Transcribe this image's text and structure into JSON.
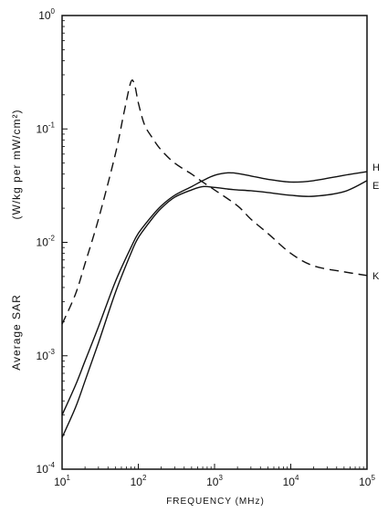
{
  "chart_data": {
    "type": "line",
    "x_scale": "log",
    "y_scale": "log",
    "xlim": [
      10,
      100000
    ],
    "ylim": [
      0.0001,
      1
    ],
    "grid": false,
    "xlabel": "FREQUENCY (MHz)",
    "ylabel": "Average SAR",
    "ylabel_units": "(W/kg per mW/cm²)",
    "x_ticks": [
      {
        "value": 10,
        "base": "10",
        "exp": "1"
      },
      {
        "value": 100,
        "base": "10",
        "exp": "2"
      },
      {
        "value": 1000,
        "base": "10",
        "exp": "3"
      },
      {
        "value": 10000,
        "base": "10",
        "exp": "4"
      },
      {
        "value": 100000,
        "base": "10",
        "exp": "5"
      }
    ],
    "y_ticks": [
      {
        "value": 1,
        "base": "10",
        "exp": "0"
      },
      {
        "value": 0.1,
        "base": "10",
        "exp": "-1"
      },
      {
        "value": 0.01,
        "base": "10",
        "exp": "-2"
      },
      {
        "value": 0.001,
        "base": "10",
        "exp": "-3"
      },
      {
        "value": 0.0001,
        "base": "10",
        "exp": "-4"
      }
    ],
    "series": [
      {
        "name": "H",
        "style": "solid",
        "x": [
          10,
          15,
          20,
          30,
          50,
          80,
          100,
          150,
          200,
          300,
          500,
          700,
          1000,
          1500,
          2000,
          3000,
          5000,
          10000,
          20000,
          50000,
          100000
        ],
        "y": [
          0.0003,
          0.00055,
          0.0009,
          0.0018,
          0.0045,
          0.009,
          0.012,
          0.017,
          0.021,
          0.026,
          0.031,
          0.035,
          0.039,
          0.041,
          0.0405,
          0.0385,
          0.036,
          0.034,
          0.035,
          0.039,
          0.042
        ]
      },
      {
        "name": "E",
        "style": "solid",
        "x": [
          10,
          15,
          20,
          30,
          50,
          80,
          100,
          150,
          200,
          300,
          500,
          700,
          1000,
          1500,
          2000,
          3000,
          5000,
          10000,
          20000,
          50000,
          100000
        ],
        "y": [
          0.00019,
          0.00035,
          0.0006,
          0.0013,
          0.0036,
          0.008,
          0.011,
          0.016,
          0.02,
          0.025,
          0.029,
          0.031,
          0.0305,
          0.0295,
          0.029,
          0.0285,
          0.0275,
          0.026,
          0.0255,
          0.028,
          0.035
        ]
      },
      {
        "name": "K",
        "style": "dashed",
        "x": [
          10,
          15,
          20,
          30,
          50,
          65,
          80,
          90,
          100,
          120,
          150,
          200,
          300,
          500,
          700,
          1000,
          2000,
          3000,
          5000,
          10000,
          20000,
          50000,
          100000
        ],
        "y": [
          0.0019,
          0.0035,
          0.0065,
          0.016,
          0.06,
          0.14,
          0.26,
          0.24,
          0.17,
          0.11,
          0.085,
          0.065,
          0.05,
          0.04,
          0.034,
          0.029,
          0.021,
          0.016,
          0.012,
          0.008,
          0.0062,
          0.0055,
          0.0051
        ]
      }
    ]
  }
}
